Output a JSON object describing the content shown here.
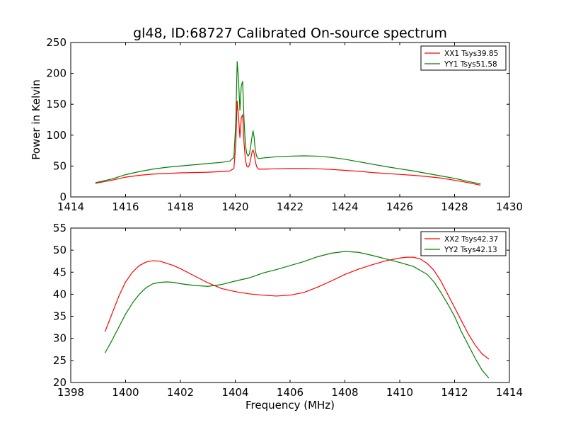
{
  "title": "gl48, ID:68727 Calibrated On-source spectrum",
  "chart_data": [
    {
      "type": "line",
      "ylabel": "Power in Kelvin",
      "xlabel": "",
      "xlim": [
        1414,
        1430
      ],
      "ylim": [
        0,
        250
      ],
      "xticks": [
        1414,
        1416,
        1418,
        1420,
        1422,
        1424,
        1426,
        1428,
        1430
      ],
      "yticks": [
        0,
        50,
        100,
        150,
        200,
        250
      ],
      "grid": false,
      "legend_position": "top-right",
      "series": [
        {
          "name": "XX1 Tsys39.85",
          "color": "#ff0000",
          "x": [
            1414.9,
            1415.5,
            1416.0,
            1416.5,
            1417.0,
            1417.5,
            1418.0,
            1418.5,
            1419.0,
            1419.5,
            1419.8,
            1419.95,
            1420.02,
            1420.07,
            1420.12,
            1420.17,
            1420.22,
            1420.27,
            1420.32,
            1420.37,
            1420.42,
            1420.47,
            1420.52,
            1420.57,
            1420.62,
            1420.65,
            1420.69,
            1420.73,
            1420.78,
            1420.85,
            1421.0,
            1421.5,
            1422.0,
            1422.5,
            1423.0,
            1423.5,
            1424.0,
            1424.5,
            1425.0,
            1425.5,
            1426.0,
            1426.5,
            1427.0,
            1427.5,
            1428.0,
            1428.5,
            1428.95
          ],
          "y": [
            22,
            27,
            32,
            35,
            37,
            38,
            39,
            39.5,
            40,
            41,
            42,
            46,
            85,
            155,
            130,
            96,
            128,
            133,
            88,
            60,
            50,
            48,
            52,
            63,
            74,
            76,
            70,
            58,
            49,
            45,
            45,
            45.5,
            46,
            46,
            45.5,
            44.5,
            43,
            41.5,
            39.5,
            38,
            36.5,
            35,
            33,
            30.5,
            27,
            23,
            19
          ]
        },
        {
          "name": "YY1 Tsys51.58",
          "color": "#008000",
          "x": [
            1414.9,
            1415.5,
            1416.0,
            1416.5,
            1417.0,
            1417.5,
            1418.0,
            1418.5,
            1419.0,
            1419.5,
            1419.8,
            1419.95,
            1420.02,
            1420.07,
            1420.12,
            1420.17,
            1420.22,
            1420.27,
            1420.32,
            1420.37,
            1420.42,
            1420.47,
            1420.52,
            1420.57,
            1420.62,
            1420.65,
            1420.69,
            1420.73,
            1420.78,
            1420.85,
            1421.0,
            1421.5,
            1422.0,
            1422.5,
            1423.0,
            1423.5,
            1424.0,
            1424.5,
            1425.0,
            1425.5,
            1426.0,
            1426.5,
            1427.0,
            1427.5,
            1428.0,
            1428.5,
            1428.95
          ],
          "y": [
            23,
            29,
            36,
            41,
            45,
            48,
            50,
            52,
            54,
            56,
            58,
            64,
            120,
            219,
            190,
            140,
            180,
            187,
            125,
            85,
            70,
            66,
            70,
            84,
            100,
            107,
            96,
            76,
            66,
            62,
            63,
            65,
            66,
            66.5,
            66,
            64,
            61,
            57,
            53,
            49,
            45.5,
            42,
            38,
            34,
            30,
            25,
            21
          ]
        }
      ]
    },
    {
      "type": "line",
      "xlabel": "Frequency (MHz)",
      "ylabel": "",
      "xlim": [
        1398,
        1414
      ],
      "ylim": [
        20,
        55
      ],
      "xticks": [
        1398,
        1400,
        1402,
        1404,
        1406,
        1408,
        1410,
        1412,
        1414
      ],
      "yticks": [
        20,
        25,
        30,
        35,
        40,
        45,
        50,
        55
      ],
      "grid": false,
      "legend_position": "top-right",
      "series": [
        {
          "name": "XX2 Tsys42.37",
          "color": "#ff0000",
          "x": [
            1399.25,
            1399.5,
            1399.75,
            1400.0,
            1400.25,
            1400.5,
            1400.75,
            1401.0,
            1401.25,
            1401.5,
            1401.75,
            1402.0,
            1402.5,
            1403.0,
            1403.5,
            1404.0,
            1404.5,
            1405.0,
            1405.5,
            1406.0,
            1406.5,
            1407.0,
            1407.5,
            1408.0,
            1408.5,
            1409.0,
            1409.5,
            1410.0,
            1410.25,
            1410.5,
            1410.75,
            1411.0,
            1411.25,
            1411.5,
            1411.75,
            1412.0,
            1412.25,
            1412.5,
            1412.75,
            1413.0,
            1413.25
          ],
          "y": [
            31.5,
            35.5,
            39.5,
            42.8,
            45.0,
            46.5,
            47.3,
            47.6,
            47.5,
            47.0,
            46.5,
            45.8,
            44.2,
            42.6,
            41.3,
            40.6,
            40.1,
            39.8,
            39.6,
            39.8,
            40.4,
            41.6,
            43.0,
            44.5,
            45.7,
            46.7,
            47.6,
            48.2,
            48.4,
            48.4,
            48.0,
            47.0,
            45.4,
            43.0,
            40.0,
            37.0,
            34.0,
            31.0,
            28.5,
            26.5,
            25.3
          ]
        },
        {
          "name": "YY2 Tsys42.13",
          "color": "#008000",
          "x": [
            1399.25,
            1399.5,
            1399.75,
            1400.0,
            1400.25,
            1400.5,
            1400.75,
            1401.0,
            1401.25,
            1401.5,
            1401.75,
            1402.0,
            1402.5,
            1403.0,
            1403.5,
            1404.0,
            1404.5,
            1405.0,
            1405.5,
            1406.0,
            1406.5,
            1407.0,
            1407.5,
            1408.0,
            1408.5,
            1409.0,
            1409.5,
            1410.0,
            1410.5,
            1411.0,
            1411.25,
            1411.5,
            1411.75,
            1412.0,
            1412.25,
            1412.5,
            1412.75,
            1413.0,
            1413.25
          ],
          "y": [
            26.7,
            29.5,
            32.5,
            35.5,
            38.0,
            40.0,
            41.5,
            42.4,
            42.7,
            42.8,
            42.7,
            42.4,
            42.0,
            41.8,
            42.2,
            43.0,
            43.7,
            44.8,
            45.6,
            46.5,
            47.4,
            48.5,
            49.3,
            49.7,
            49.5,
            48.8,
            48.0,
            47.2,
            46.3,
            44.5,
            42.8,
            40.4,
            37.8,
            35.0,
            31.5,
            28.5,
            25.5,
            22.8,
            21.0
          ]
        }
      ]
    }
  ]
}
